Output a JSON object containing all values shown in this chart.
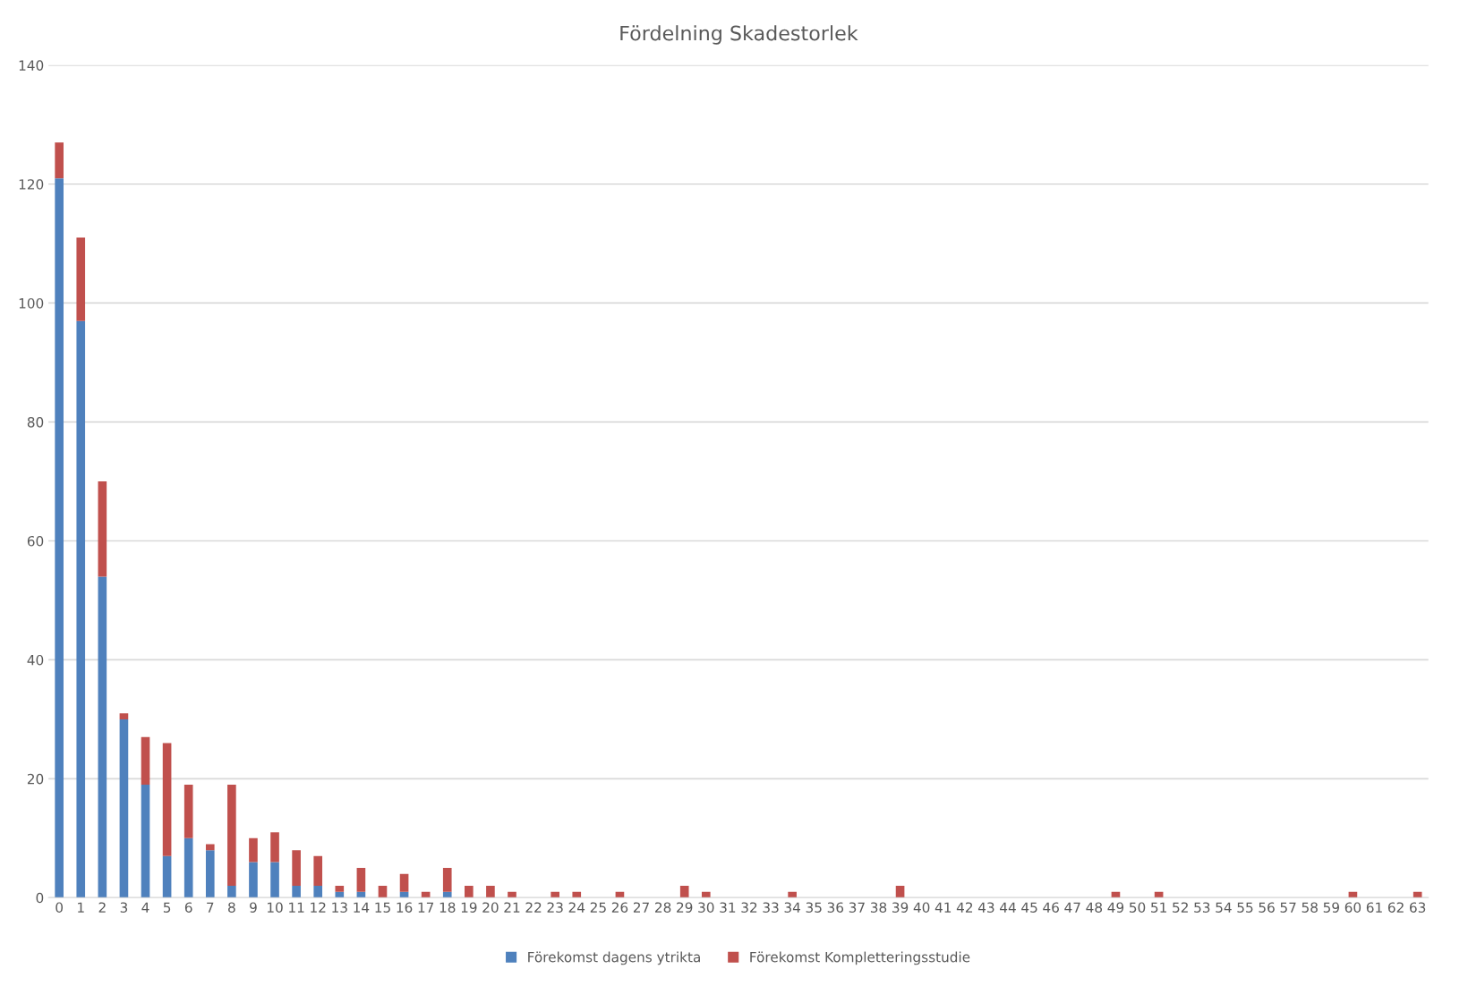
{
  "chart_data": {
    "type": "bar",
    "title": "Fördelning Skadestorlek",
    "stacked": true,
    "categories": [
      "0",
      "1",
      "2",
      "3",
      "4",
      "5",
      "6",
      "7",
      "8",
      "9",
      "10",
      "11",
      "12",
      "13",
      "14",
      "15",
      "16",
      "17",
      "18",
      "19",
      "20",
      "21",
      "22",
      "23",
      "24",
      "25",
      "26",
      "27",
      "28",
      "29",
      "30",
      "31",
      "32",
      "33",
      "34",
      "35",
      "36",
      "37",
      "38",
      "39",
      "40",
      "41",
      "42",
      "43",
      "44",
      "45",
      "46",
      "47",
      "48",
      "49",
      "50",
      "51",
      "52",
      "53",
      "54",
      "55",
      "56",
      "57",
      "58",
      "59",
      "60",
      "61",
      "62",
      "63"
    ],
    "series": [
      {
        "name": "Förekomst dagens ytrikta",
        "color": "#4f81bd",
        "values": [
          121,
          97,
          54,
          30,
          19,
          7,
          10,
          8,
          2,
          6,
          6,
          2,
          2,
          1,
          1,
          0,
          1,
          0,
          1,
          0,
          0,
          0,
          0,
          0,
          0,
          0,
          0,
          0,
          0,
          0,
          0,
          0,
          0,
          0,
          0,
          0,
          0,
          0,
          0,
          0,
          0,
          0,
          0,
          0,
          0,
          0,
          0,
          0,
          0,
          0,
          0,
          0,
          0,
          0,
          0,
          0,
          0,
          0,
          0,
          0,
          0,
          0,
          0,
          0
        ]
      },
      {
        "name": "Förekomst Kompletteringsstudie",
        "color": "#c0504d",
        "values": [
          6,
          14,
          16,
          1,
          8,
          19,
          9,
          1,
          17,
          4,
          5,
          6,
          5,
          1,
          4,
          2,
          3,
          1,
          4,
          2,
          2,
          1,
          0,
          1,
          1,
          0,
          1,
          0,
          0,
          2,
          1,
          0,
          0,
          0,
          1,
          0,
          0,
          0,
          0,
          2,
          0,
          0,
          0,
          0,
          0,
          0,
          0,
          0,
          0,
          1,
          0,
          1,
          0,
          0,
          0,
          0,
          0,
          0,
          0,
          0,
          1,
          0,
          0,
          1
        ]
      }
    ],
    "ylim": [
      0,
      140
    ],
    "yticks": [
      0,
      20,
      40,
      60,
      80,
      100,
      120,
      140
    ],
    "grid": "y",
    "legend": "bottom"
  }
}
